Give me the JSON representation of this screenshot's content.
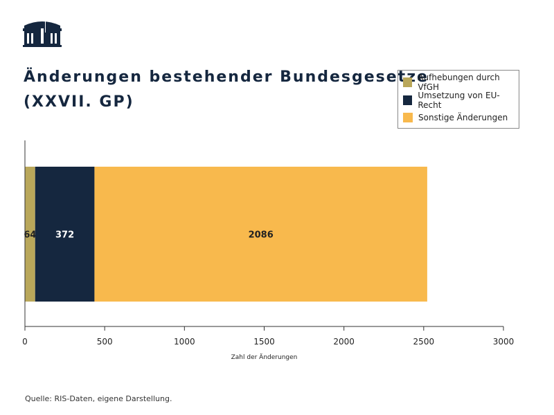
{
  "title_line1": "Änderungen bestehender Bundesgesetze",
  "title_line2": "(XXVII. GP)",
  "source": "Quelle: RIS-Daten, eigene Darstellung.",
  "chart_data": {
    "type": "bar",
    "orientation": "horizontal",
    "stacked": true,
    "categories": [
      ""
    ],
    "series": [
      {
        "name": "Aufhebungen durch VfGH",
        "values": [
          64
        ],
        "color": "#b9a75a"
      },
      {
        "name": "Umsetzung von EU-Recht",
        "values": [
          372
        ],
        "color": "#15273f"
      },
      {
        "name": "Sonstige Änderungen",
        "values": [
          2086
        ],
        "color": "#f8b94d"
      }
    ],
    "data_labels": [
      "64",
      "372",
      "2086"
    ],
    "xlabel": "Zahl der Änderungen",
    "xlim": [
      0,
      3000
    ],
    "xticks": [
      "0",
      "500",
      "1000",
      "1500",
      "2000",
      "2500",
      "3000"
    ],
    "grid": false,
    "legend": "top-right"
  }
}
